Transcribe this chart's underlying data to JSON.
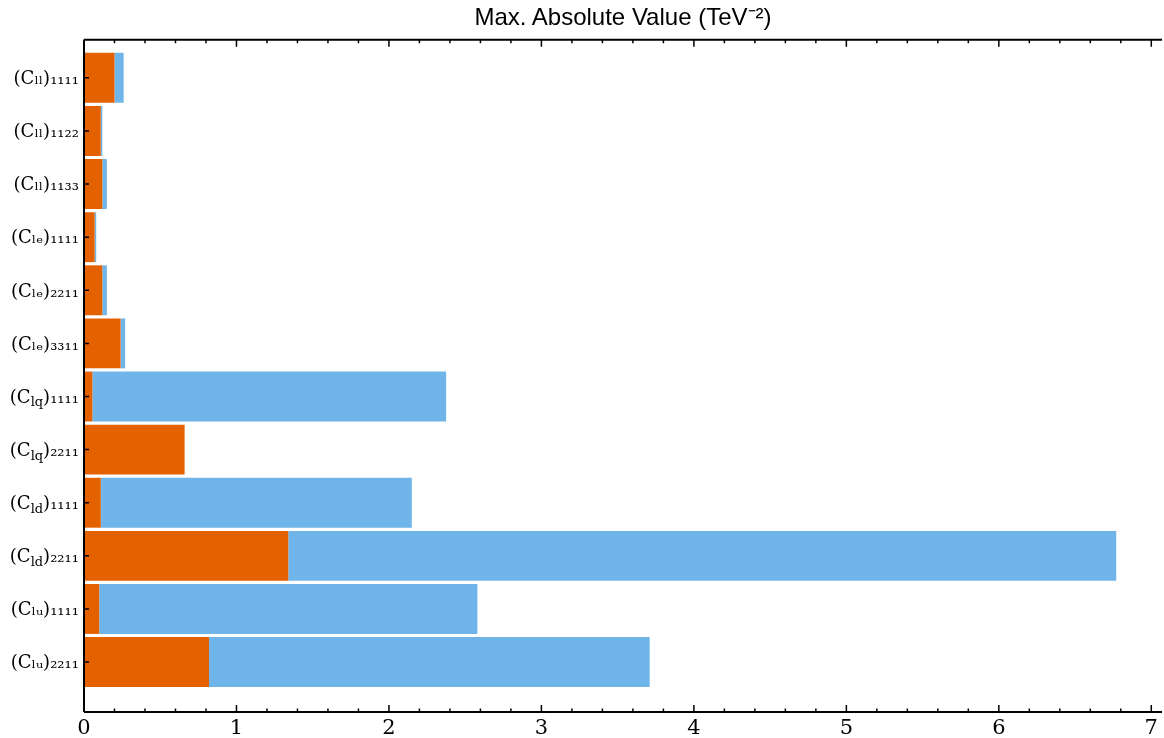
{
  "chart_data": {
    "type": "bar",
    "orientation": "horizontal",
    "stacked": true,
    "title": "Max. Absolute Value (TeV⁻²)",
    "categories": [
      "(Cₗₗ)₁₁₁₁",
      "(Cₗₗ)₁₁₂₂",
      "(Cₗₗ)₁₁₃₃",
      "(Cₗₑ)₁₁₁₁",
      "(Cₗₑ)₂₂₁₁",
      "(Cₗₑ)₃₃₁₁",
      "(C$_{lq}$)₁₁₁₁",
      "(C$_{lq}$)₂₂₁₁",
      "(C$_{ld}$)₁₁₁₁",
      "(C$_{ld}$)₂₂₁₁",
      "(Cₗᵤ)₁₁₁₁",
      "(Cₗᵤ)₂₂₁₁"
    ],
    "series": [
      {
        "color": "#e46100",
        "values": [
          0.2,
          0.11,
          0.12,
          0.07,
          0.12,
          0.24,
          0.055,
          0.66,
          0.11,
          1.34,
          0.1,
          0.82
        ]
      },
      {
        "color": "#6fb5e9",
        "values": [
          0.06,
          0.01,
          0.03,
          0.01,
          0.03,
          0.03,
          2.32,
          null,
          2.04,
          5.43,
          2.48,
          2.89
        ]
      }
    ],
    "xlim": [
      0,
      7.07
    ],
    "xticks": [
      0,
      {
        "value": 0.2,
        "label": null
      },
      {
        "value": 0.4,
        "label": null
      },
      {
        "value": 0.6,
        "label": null
      },
      {
        "value": 0.8,
        "label": null
      },
      1,
      {
        "value": 1.2,
        "label": null
      },
      {
        "value": 1.4,
        "label": null
      },
      {
        "value": 1.6,
        "label": null
      },
      {
        "value": 1.8,
        "label": null
      },
      2,
      {
        "value": 2.2,
        "label": null
      },
      {
        "value": 2.4,
        "label": null
      },
      {
        "value": 2.6,
        "label": null
      },
      {
        "value": 2.8,
        "label": null
      },
      3,
      {
        "value": 3.2,
        "label": null
      },
      {
        "value": 3.4,
        "label": null
      },
      {
        "value": 3.6,
        "label": null
      },
      {
        "value": 3.8,
        "label": null
      },
      4,
      {
        "value": 4.2,
        "label": null
      },
      {
        "value": 4.4,
        "label": null
      },
      {
        "value": 4.6,
        "label": null
      },
      {
        "value": 4.8,
        "label": null
      },
      5,
      {
        "value": 5.2,
        "label": null
      },
      {
        "value": 5.4,
        "label": null
      },
      {
        "value": 5.6,
        "label": null
      },
      {
        "value": 5.8,
        "label": null
      },
      6,
      {
        "value": 6.2,
        "label": null
      },
      {
        "value": 6.4,
        "label": null
      },
      {
        "value": 6.6,
        "label": null
      },
      {
        "value": 6.8,
        "label": null
      },
      7
    ]
  }
}
